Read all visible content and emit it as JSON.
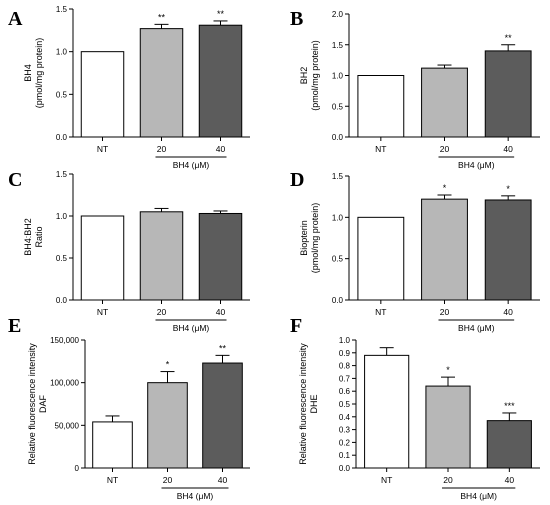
{
  "colors": {
    "NT": "#ffffff",
    "20": "#b7b7b7",
    "40": "#5c5c5c",
    "stroke": "#000000"
  },
  "chart_data": [
    {
      "panel": "A",
      "type": "bar",
      "categories": [
        "NT",
        "20",
        "40"
      ],
      "values": [
        1.0,
        1.27,
        1.31
      ],
      "errors": [
        0,
        0.05,
        0.05
      ],
      "significance": [
        "",
        "**",
        "**"
      ],
      "ylabel": [
        "BH4",
        "(pmol/mg protein)"
      ],
      "ylim": [
        0,
        1.5
      ],
      "yticks": [
        "0.0",
        "0.5",
        "1.0",
        "1.5"
      ],
      "group_label": "BH4 (μM)"
    },
    {
      "panel": "B",
      "type": "bar",
      "categories": [
        "NT",
        "20",
        "40"
      ],
      "values": [
        1.0,
        1.12,
        1.4
      ],
      "errors": [
        0,
        0.05,
        0.1
      ],
      "significance": [
        "",
        "",
        "**"
      ],
      "ylabel": [
        "BH2",
        "(pmol/mg protein)"
      ],
      "ylim": [
        0,
        2.0
      ],
      "yticks": [
        "0.0",
        "0.5",
        "1.0",
        "1.5",
        "2.0"
      ],
      "group_label": "BH4 (μM)"
    },
    {
      "panel": "C",
      "type": "bar",
      "categories": [
        "NT",
        "20",
        "40"
      ],
      "values": [
        1.0,
        1.05,
        1.03
      ],
      "errors": [
        0,
        0.04,
        0.03
      ],
      "significance": [
        "",
        "",
        ""
      ],
      "ylabel": [
        "BH4:BH2",
        "Ratio"
      ],
      "ylim": [
        0,
        1.5
      ],
      "yticks": [
        "0.0",
        "0.5",
        "1.0",
        "1.5"
      ],
      "group_label": "BH4 (μM)"
    },
    {
      "panel": "D",
      "type": "bar",
      "categories": [
        "NT",
        "20",
        "40"
      ],
      "values": [
        1.0,
        1.22,
        1.21
      ],
      "errors": [
        0,
        0.05,
        0.05
      ],
      "significance": [
        "",
        "*",
        "*"
      ],
      "ylabel": [
        "Biopterin",
        "(pmol/mg protein)"
      ],
      "ylim": [
        0,
        1.5
      ],
      "yticks": [
        "0.0",
        "0.5",
        "1.0",
        "1.5"
      ],
      "group_label": "BH4 (μM)"
    },
    {
      "panel": "E",
      "type": "bar",
      "categories": [
        "NT",
        "20",
        "40"
      ],
      "values": [
        54000,
        100000,
        123000
      ],
      "errors": [
        7000,
        13000,
        9000
      ],
      "significance": [
        "",
        "*",
        "**"
      ],
      "ylabel": [
        "Relative fluorescence intensity",
        "DAF"
      ],
      "ylim": [
        0,
        150000
      ],
      "yticks": [
        "0",
        "50,000",
        "100,000",
        "150,000"
      ],
      "group_label": "BH4 (μM)"
    },
    {
      "panel": "F",
      "type": "bar",
      "categories": [
        "NT",
        "20",
        "40"
      ],
      "values": [
        0.88,
        0.64,
        0.37
      ],
      "errors": [
        0.06,
        0.07,
        0.06
      ],
      "significance": [
        "",
        "*",
        "***"
      ],
      "ylabel": [
        "Relative fluorescence intensity",
        "DHE"
      ],
      "ylim": [
        0,
        1.0
      ],
      "yticks": [
        "0.0",
        "0.1",
        "0.2",
        "0.3",
        "0.4",
        "0.5",
        "0.6",
        "0.7",
        "0.8",
        "0.9",
        "1.0"
      ],
      "group_label": "BH4 (μM)"
    }
  ]
}
